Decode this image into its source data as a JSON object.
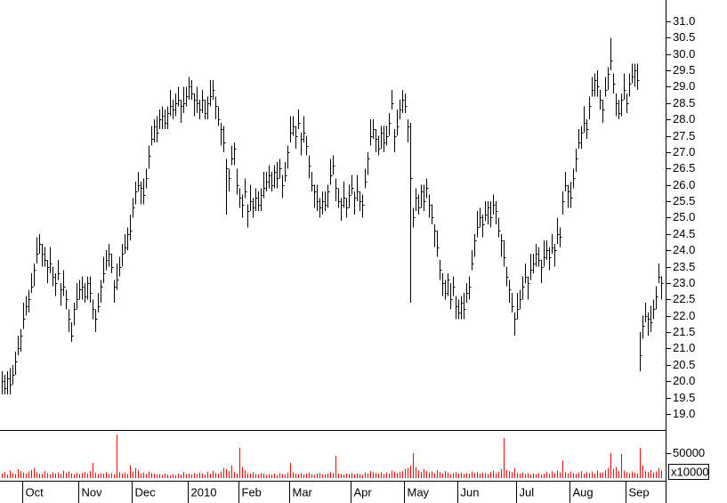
{
  "chart_data": {
    "type": "ohlc",
    "color": "#000000",
    "categories": [
      null,
      null,
      null,
      null,
      null,
      null,
      null,
      null,
      "Oct",
      null,
      null,
      null,
      null,
      null,
      null,
      null,
      null,
      null,
      null,
      null,
      null,
      null,
      null,
      null,
      null,
      null,
      null,
      null,
      null,
      "Nov",
      null,
      null,
      null,
      null,
      null,
      null,
      null,
      null,
      null,
      null,
      null,
      null,
      null,
      null,
      null,
      null,
      null,
      null,
      null,
      "Dec",
      null,
      null,
      null,
      null,
      null,
      null,
      null,
      null,
      null,
      null,
      null,
      null,
      null,
      null,
      null,
      null,
      null,
      null,
      null,
      null,
      "2010",
      null,
      null,
      null,
      null,
      null,
      null,
      null,
      null,
      null,
      null,
      null,
      null,
      null,
      null,
      null,
      null,
      null,
      null,
      "Feb",
      null,
      null,
      null,
      null,
      null,
      null,
      null,
      null,
      null,
      null,
      null,
      null,
      null,
      null,
      null,
      null,
      null,
      null,
      "Mar",
      null,
      null,
      null,
      null,
      null,
      null,
      null,
      null,
      null,
      null,
      null,
      null,
      null,
      null,
      null,
      null,
      null,
      null,
      null,
      null,
      null,
      null,
      "Apr",
      null,
      null,
      null,
      null,
      null,
      null,
      null,
      null,
      null,
      null,
      null,
      null,
      null,
      null,
      null,
      null,
      null,
      null,
      null,
      "May",
      null,
      null,
      null,
      null,
      null,
      null,
      null,
      null,
      null,
      null,
      null,
      null,
      null,
      null,
      null,
      null,
      null,
      null,
      null,
      "Jun",
      null,
      null,
      null,
      null,
      null,
      null,
      null,
      null,
      null,
      null,
      null,
      null,
      null,
      null,
      null,
      null,
      null,
      null,
      null,
      null,
      null,
      "Jul",
      null,
      null,
      null,
      null,
      null,
      null,
      null,
      null,
      null,
      null,
      null,
      null,
      null,
      null,
      null,
      null,
      null,
      null,
      null,
      "Aug",
      null,
      null,
      null,
      null,
      null,
      null,
      null,
      null,
      null,
      null,
      null,
      null,
      null,
      null,
      null,
      null,
      null,
      null,
      null,
      null,
      "Sep",
      null,
      null,
      null,
      null,
      null,
      null,
      null,
      null,
      null,
      null,
      null,
      null,
      null
    ],
    "high": [
      20.3,
      20.2,
      20.3,
      20.4,
      20.5,
      20.9,
      21.4,
      21.6,
      22.4,
      22.6,
      22.8,
      23.3,
      23.6,
      24.4,
      24.5,
      24.2,
      24.1,
      23.7,
      24.1,
      23.5,
      23.3,
      23.7,
      23.0,
      23.4,
      22.8,
      22.2,
      21.8,
      22.4,
      23.0,
      23.1,
      23.2,
      23.0,
      23.2,
      23.2,
      22.5,
      22.2,
      22.7,
      23.1,
      23.8,
      24.0,
      24.2,
      23.9,
      23.1,
      23.6,
      23.8,
      24.2,
      24.5,
      24.7,
      25.1,
      25.6,
      26.1,
      26.4,
      26.1,
      26.2,
      26.5,
      27.2,
      27.8,
      28.0,
      28.1,
      28.3,
      28.4,
      28.3,
      28.4,
      28.9,
      28.6,
      28.8,
      29.0,
      28.6,
      29.0,
      29.0,
      29.3,
      29.2,
      28.8,
      29.0,
      28.6,
      28.9,
      28.6,
      28.7,
      29.2,
      29.2,
      28.7,
      28.4,
      27.9,
      27.8,
      26.8,
      26.5,
      27.2,
      27.3,
      26.5,
      25.9,
      25.7,
      26.2,
      25.4,
      26.0,
      25.6,
      25.9,
      25.8,
      25.9,
      26.4,
      26.4,
      26.6,
      26.4,
      26.6,
      26.7,
      26.8,
      26.3,
      26.7,
      27.2,
      28.1,
      28.1,
      27.8,
      28.3,
      27.6,
      28.1,
      27.5,
      26.9,
      26.4,
      26.0,
      26.0,
      25.6,
      25.8,
      25.8,
      26.0,
      26.8,
      26.9,
      26.2,
      25.9,
      25.6,
      26.1,
      25.6,
      26.0,
      26.3,
      25.8,
      26.3,
      25.8,
      25.7,
      26.5,
      27.0,
      28.0,
      28.0,
      27.7,
      27.5,
      27.8,
      27.8,
      27.8,
      28.2,
      28.9,
      27.7,
      28.3,
      28.6,
      28.9,
      28.8,
      28.0,
      27.9,
      25.3,
      25.9,
      25.7,
      26.0,
      26.0,
      26.2,
      25.7,
      25.4,
      24.8,
      24.6,
      23.7,
      23.3,
      23.1,
      23.3,
      23.0,
      23.2,
      22.6,
      22.5,
      22.6,
      22.7,
      23.0,
      23.2,
      24.0,
      24.5,
      25.2,
      25.3,
      25.1,
      25.5,
      25.5,
      25.5,
      25.7,
      25.5,
      25.0,
      24.5,
      24.3,
      23.5,
      23.1,
      22.7,
      22.1,
      22.7,
      22.8,
      23.2,
      23.6,
      23.2,
      23.9,
      23.9,
      24.2,
      24.1,
      23.7,
      24.3,
      24.3,
      24.1,
      24.5,
      24.2,
      25.0,
      24.7,
      25.8,
      26.4,
      26.0,
      26.1,
      26.5,
      27.1,
      27.7,
      27.8,
      28.4,
      28.0,
      28.7,
      29.3,
      29.4,
      29.5,
      28.9,
      28.6,
      29.3,
      29.6,
      30.5,
      29.4,
      28.8,
      28.6,
      28.8,
      29.4,
      28.8,
      29.4,
      29.7,
      29.7,
      29.7,
      21.5,
      22.0,
      22.4,
      22.1,
      22.3,
      22.5,
      22.9,
      23.6,
      23.2
    ],
    "low": [
      19.6,
      19.6,
      19.6,
      19.6,
      19.9,
      20.2,
      20.8,
      20.9,
      21.6,
      22.0,
      22.1,
      22.7,
      22.9,
      23.6,
      23.9,
      23.5,
      23.5,
      23.0,
      23.3,
      22.9,
      22.6,
      23.1,
      22.3,
      22.6,
      22.2,
      21.5,
      21.2,
      21.7,
      22.2,
      22.5,
      22.5,
      22.4,
      22.5,
      22.4,
      21.9,
      21.5,
      22.1,
      22.4,
      23.0,
      23.4,
      23.5,
      23.3,
      22.4,
      22.8,
      23.2,
      23.5,
      23.9,
      24.0,
      24.3,
      25.0,
      25.4,
      25.8,
      25.4,
      25.4,
      25.9,
      26.5,
      27.2,
      27.3,
      27.3,
      27.7,
      27.7,
      27.7,
      27.7,
      28.1,
      28.0,
      28.1,
      28.4,
      27.9,
      28.2,
      28.4,
      28.6,
      28.6,
      28.1,
      28.2,
      28.0,
      28.2,
      28.0,
      28.0,
      28.4,
      28.6,
      28.0,
      27.8,
      27.2,
      27.0,
      25.1,
      25.8,
      26.6,
      26.6,
      25.7,
      25.3,
      25.0,
      25.6,
      24.7,
      25.2,
      25.0,
      25.2,
      25.2,
      25.2,
      25.6,
      25.8,
      25.9,
      25.8,
      25.9,
      25.9,
      26.2,
      25.6,
      26.1,
      26.5,
      27.3,
      27.5,
      27.1,
      27.7,
      26.9,
      27.3,
      26.9,
      26.2,
      25.8,
      25.3,
      25.2,
      25.0,
      25.1,
      25.2,
      25.3,
      26.0,
      26.3,
      25.5,
      25.3,
      24.9,
      25.3,
      25.0,
      25.3,
      25.7,
      25.1,
      25.5,
      25.2,
      25.0,
      25.9,
      26.3,
      27.2,
      27.4,
      27.0,
      26.9,
      27.1,
      27.0,
      27.2,
      27.5,
      28.3,
      27.0,
      27.5,
      28.0,
      28.2,
      28.2,
      27.3,
      22.4,
      24.7,
      25.2,
      25.1,
      25.3,
      25.2,
      25.6,
      25.0,
      24.8,
      24.1,
      23.8,
      23.1,
      22.6,
      22.5,
      22.6,
      22.2,
      22.6,
      21.9,
      21.9,
      21.9,
      21.9,
      22.4,
      22.5,
      23.4,
      23.8,
      24.4,
      24.7,
      24.4,
      24.9,
      24.8,
      24.7,
      25.1,
      24.8,
      24.4,
      23.8,
      23.5,
      22.9,
      22.4,
      22.1,
      21.4,
      21.9,
      22.2,
      22.5,
      23.0,
      22.5,
      23.1,
      23.3,
      23.5,
      23.5,
      23.0,
      23.5,
      23.7,
      23.4,
      23.9,
      23.5,
      24.2,
      24.1,
      25.1,
      25.8,
      25.3,
      25.3,
      25.9,
      26.4,
      27.1,
      27.1,
      27.6,
      27.4,
      28.0,
      28.7,
      28.7,
      28.7,
      28.3,
      27.9,
      28.7,
      28.9,
      29.5,
      28.8,
      28.1,
      28.0,
      28.1,
      28.6,
      28.2,
      28.7,
      29.1,
      29.0,
      28.9,
      20.3,
      21.3,
      21.8,
      21.4,
      21.5,
      21.9,
      22.2,
      23.0,
      22.5
    ],
    "close": [
      20.0,
      19.8,
      20.1,
      19.9,
      20.2,
      20.6,
      21.0,
      21.4,
      21.9,
      22.3,
      22.5,
      22.9,
      23.4,
      23.9,
      24.2,
      23.9,
      23.7,
      23.5,
      23.6,
      23.2,
      23.0,
      23.3,
      22.8,
      22.9,
      22.5,
      21.9,
      21.4,
      22.2,
      22.5,
      22.8,
      22.9,
      22.6,
      23.0,
      22.7,
      22.2,
      21.9,
      22.3,
      22.9,
      23.3,
      23.7,
      23.9,
      23.5,
      22.9,
      23.1,
      23.5,
      23.9,
      24.1,
      24.5,
      24.6,
      25.3,
      25.8,
      26.0,
      25.9,
      25.7,
      26.2,
      26.9,
      27.4,
      27.8,
      27.6,
      28.0,
      28.1,
      27.9,
      28.2,
      28.4,
      28.3,
      28.5,
      28.6,
      28.4,
      28.5,
      28.7,
      29.0,
      28.8,
      28.6,
      28.5,
      28.3,
      28.6,
      28.2,
      28.5,
      28.7,
      28.9,
      28.4,
      28.0,
      27.7,
      27.3,
      26.5,
      26.2,
      26.8,
      27.1,
      26.0,
      25.6,
      25.4,
      25.8,
      25.2,
      25.5,
      25.3,
      25.6,
      25.4,
      25.7,
      25.9,
      26.1,
      26.3,
      26.0,
      26.4,
      26.2,
      26.5,
      26.0,
      26.3,
      27.0,
      27.6,
      27.8,
      27.5,
      27.9,
      27.4,
      27.6,
      27.2,
      26.6,
      26.0,
      25.8,
      25.5,
      25.3,
      25.5,
      25.4,
      25.8,
      26.3,
      26.6,
      25.9,
      25.5,
      25.4,
      25.6,
      25.3,
      25.7,
      25.9,
      25.6,
      25.8,
      25.5,
      25.4,
      26.1,
      26.8,
      27.5,
      27.7,
      27.4,
      27.1,
      27.6,
      27.3,
      27.5,
      27.9,
      28.5,
      27.5,
      27.8,
      28.3,
      28.6,
      28.4,
      27.8,
      26.2,
      25.0,
      25.6,
      25.3,
      25.8,
      25.5,
      25.9,
      25.4,
      25.0,
      24.6,
      24.1,
      23.4,
      23.0,
      22.7,
      23.1,
      22.5,
      22.9,
      22.3,
      22.1,
      22.4,
      22.2,
      22.7,
      22.9,
      23.6,
      24.3,
      24.7,
      25.0,
      24.8,
      25.1,
      25.3,
      25.0,
      25.4,
      25.2,
      24.6,
      24.3,
      23.8,
      23.2,
      22.8,
      22.3,
      21.9,
      22.2,
      22.5,
      22.9,
      23.2,
      23.0,
      23.4,
      23.6,
      23.9,
      23.7,
      23.5,
      23.8,
      24.0,
      23.8,
      24.1,
      24.0,
      24.5,
      24.4,
      25.5,
      26.0,
      25.8,
      25.6,
      26.2,
      26.8,
      27.3,
      27.6,
      27.9,
      27.7,
      28.4,
      28.9,
      29.2,
      29.0,
      28.6,
      28.3,
      28.9,
      29.4,
      29.8,
      29.1,
      28.5,
      28.2,
      28.6,
      28.9,
      28.5,
      29.1,
      29.3,
      29.5,
      29.2,
      20.8,
      21.7,
      22.0,
      21.9,
      21.8,
      22.2,
      22.6,
      23.2,
      23.0
    ],
    "ylim": [
      18.51,
      31.65
    ],
    "yticks": [
      {
        "value": 19,
        "label": "19.0"
      },
      19.5,
      {
        "value": 20,
        "label": "20.0"
      },
      20.5,
      {
        "value": 21,
        "label": "21.0"
      },
      21.5,
      {
        "value": 22,
        "label": "22.0"
      },
      22.5,
      {
        "value": 23,
        "label": "23.0"
      },
      23.5,
      {
        "value": 24,
        "label": "24.0"
      },
      24.5,
      {
        "value": 25,
        "label": "25.0"
      },
      25.5,
      {
        "value": 26,
        "label": "26.0"
      },
      26.5,
      {
        "value": 27,
        "label": "27.0"
      },
      27.5,
      {
        "value": 28,
        "label": "28.0"
      },
      28.5,
      {
        "value": 29,
        "label": "29.0"
      },
      29.5,
      {
        "value": 30,
        "label": "30.0"
      },
      30.5,
      {
        "value": 31,
        "label": "31.0"
      }
    ],
    "volume": {
      "color": "#ff0000",
      "unit_label": "x10000",
      "ylim": [
        0,
        96000
      ],
      "yticks": [
        50000
      ],
      "values": [
        9000,
        12000,
        7000,
        15000,
        10000,
        8000,
        18000,
        14000,
        11000,
        9000,
        13000,
        16000,
        20000,
        12000,
        9000,
        8000,
        14000,
        10000,
        7000,
        12000,
        9000,
        11000,
        8000,
        15000,
        10000,
        13000,
        9000,
        7000,
        11000,
        8000,
        10000,
        12000,
        9000,
        14000,
        30000,
        11000,
        8000,
        10000,
        9000,
        12000,
        8000,
        10000,
        7000,
        87000,
        12000,
        9000,
        11000,
        8000,
        25000,
        13000,
        20000,
        15000,
        9000,
        11000,
        8000,
        13000,
        10000,
        9000,
        7000,
        8000,
        6000,
        9000,
        7000,
        5000,
        8000,
        6000,
        9000,
        7000,
        12000,
        8000,
        9000,
        7000,
        10000,
        8000,
        11000,
        9000,
        7000,
        12000,
        8000,
        15000,
        10000,
        9000,
        13000,
        20000,
        18000,
        14000,
        25000,
        12000,
        9000,
        60000,
        22000,
        15000,
        10000,
        9000,
        12000,
        8000,
        7000,
        10000,
        9000,
        6000,
        8000,
        7000,
        9000,
        6000,
        10000,
        8000,
        7000,
        11000,
        30000,
        12000,
        9000,
        8000,
        10000,
        7000,
        9000,
        11000,
        8000,
        6000,
        9000,
        10000,
        7000,
        8000,
        9000,
        12000,
        10000,
        45000,
        9000,
        8000,
        7000,
        9000,
        8000,
        10000,
        7000,
        9000,
        8000,
        6000,
        11000,
        9000,
        14000,
        12000,
        10000,
        9000,
        12000,
        8000,
        11000,
        9000,
        15000,
        13000,
        10000,
        12000,
        14000,
        18000,
        20000,
        25000,
        50000,
        22000,
        15000,
        12000,
        18000,
        14000,
        11000,
        13000,
        10000,
        16000,
        12000,
        9000,
        14000,
        11000,
        8000,
        10000,
        12000,
        9000,
        11000,
        8000,
        10000,
        9000,
        13000,
        10000,
        12000,
        9000,
        11000,
        10000,
        8000,
        12000,
        15000,
        10000,
        13000,
        18000,
        80000,
        16000,
        14000,
        12000,
        20000,
        10000,
        9000,
        11000,
        8000,
        10000,
        7000,
        9000,
        8000,
        10000,
        7000,
        9000,
        12000,
        8000,
        14000,
        10000,
        15000,
        11000,
        35000,
        12000,
        9000,
        13000,
        10000,
        8000,
        11000,
        14000,
        9000,
        12000,
        10000,
        13000,
        9000,
        15000,
        11000,
        12000,
        16000,
        20000,
        50000,
        18000,
        22000,
        14000,
        48000,
        15000,
        12000,
        10000,
        13000,
        11000,
        9000,
        60000,
        25000,
        14000,
        12000,
        16000,
        11000,
        13000,
        20000,
        15000
      ]
    }
  }
}
